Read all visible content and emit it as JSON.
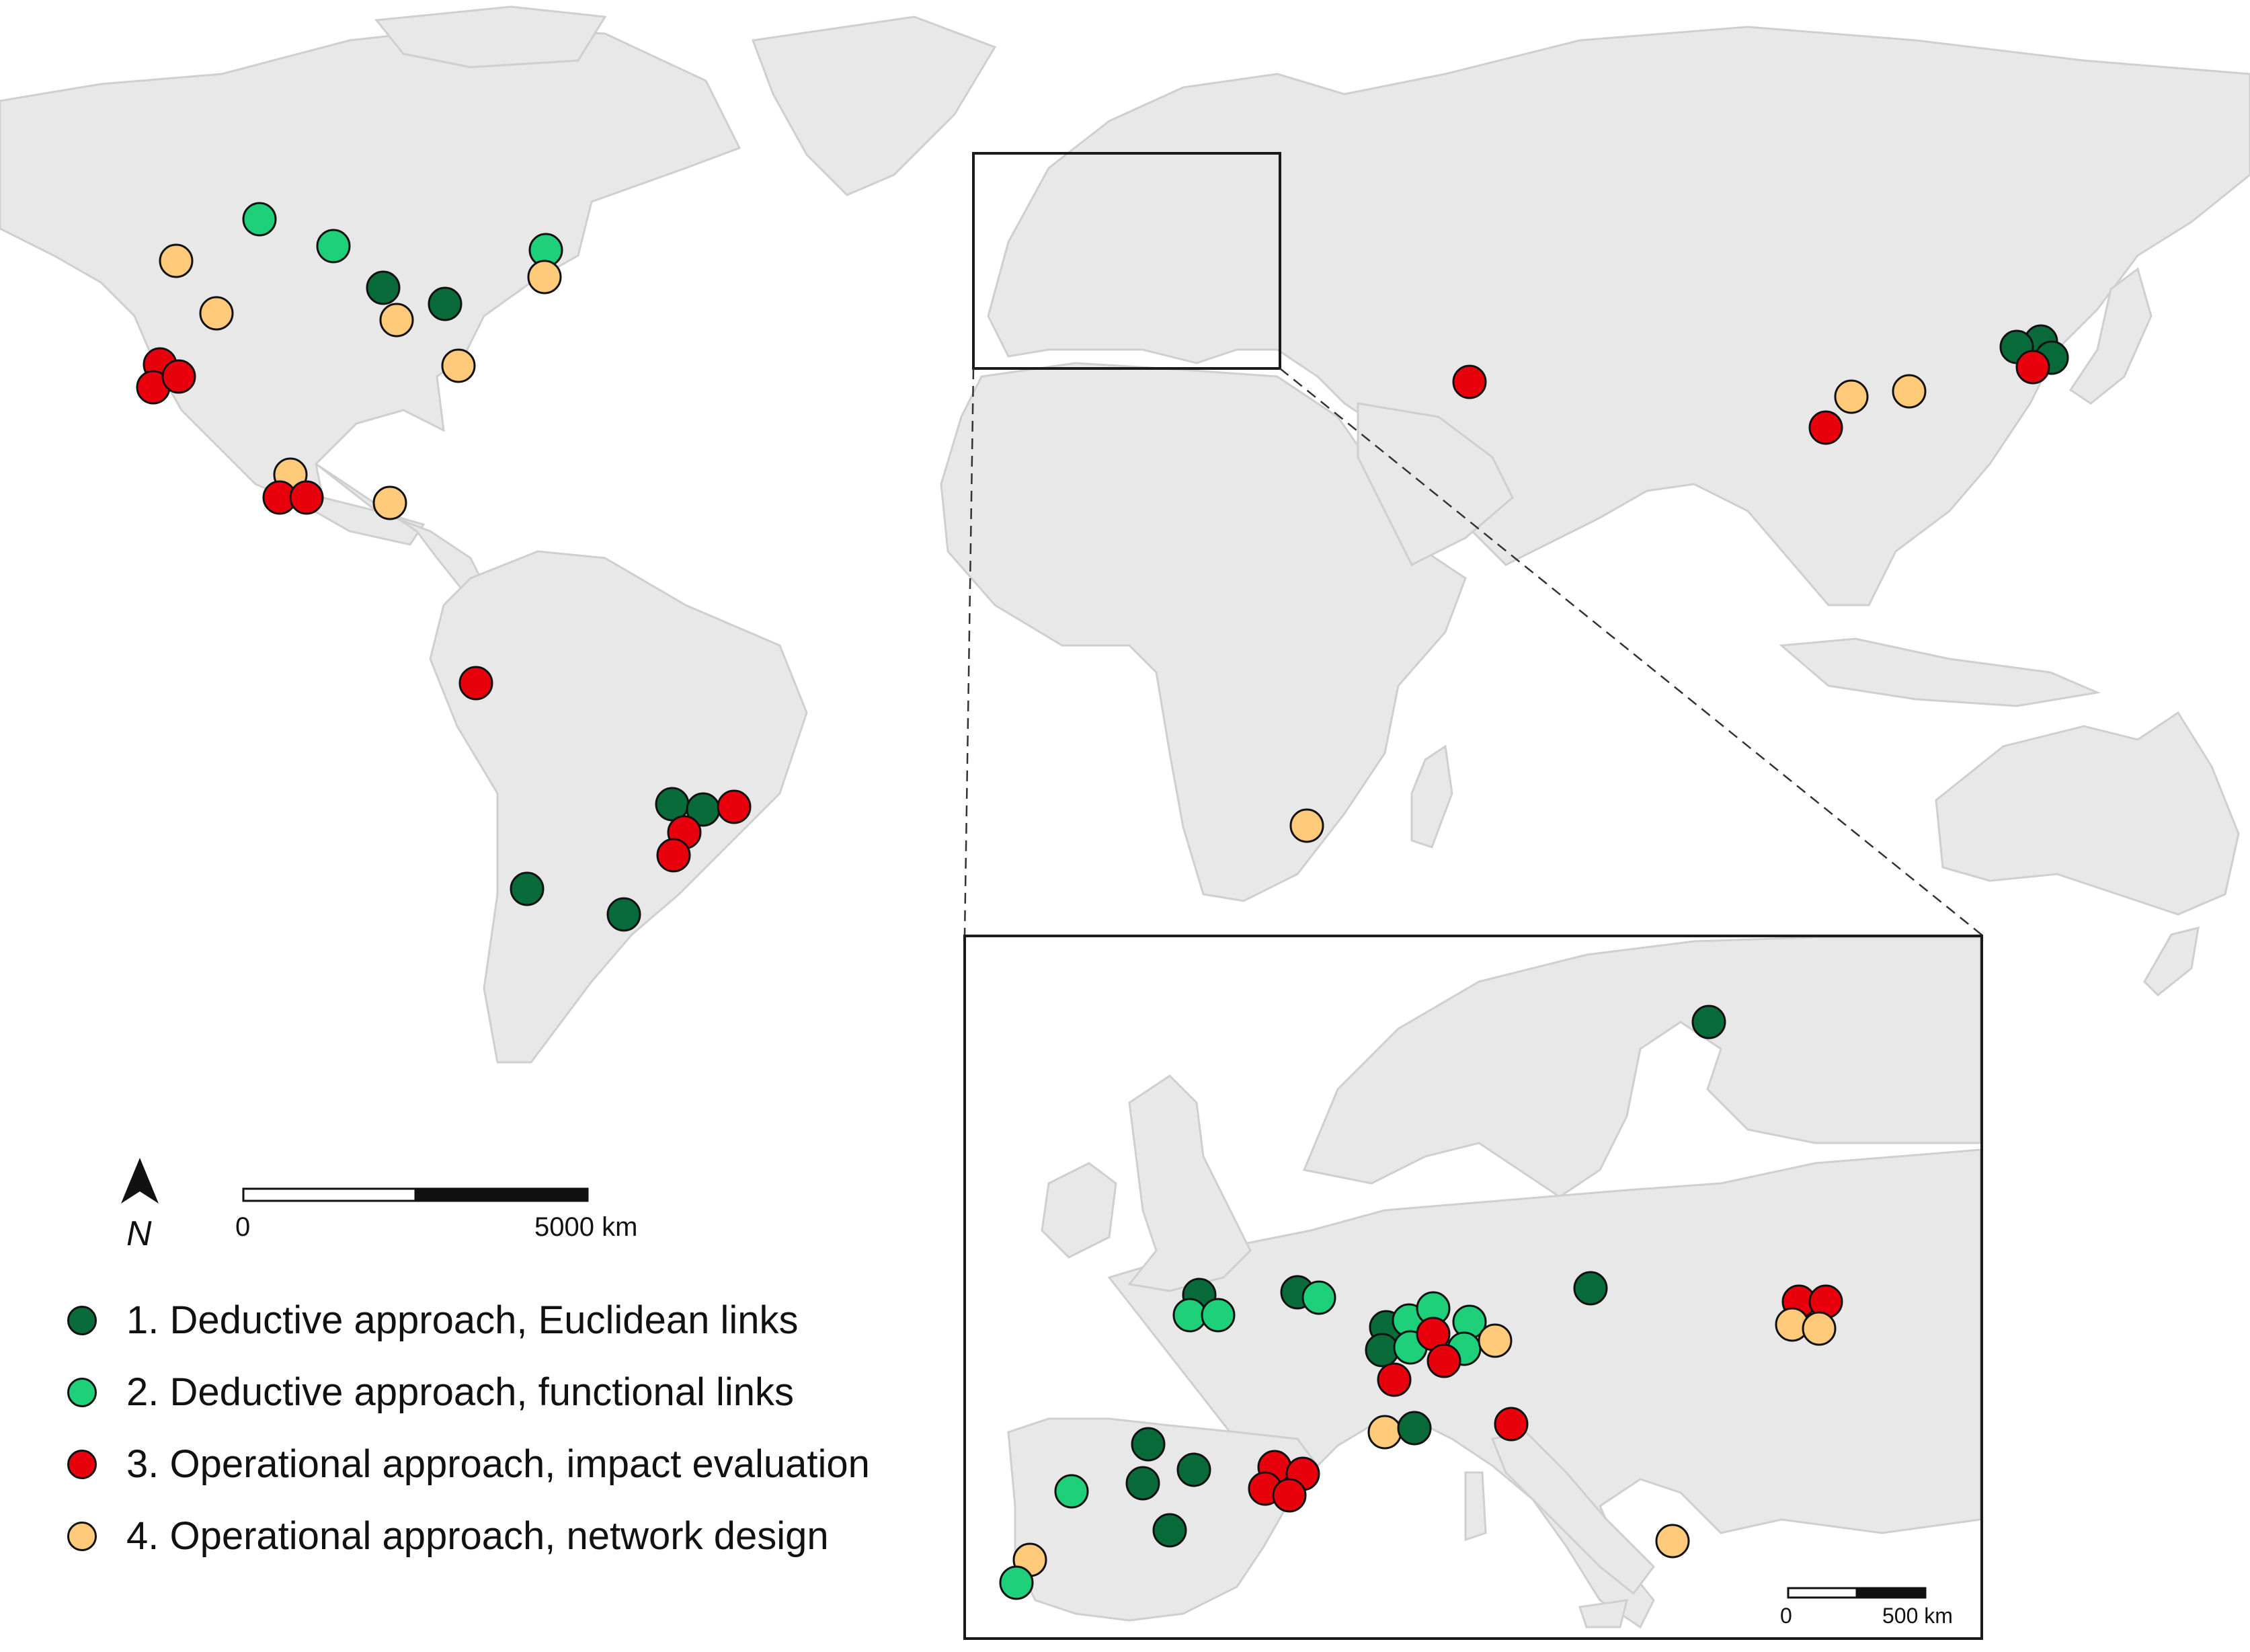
{
  "categories": [
    {
      "id": "c1",
      "label": "1. Deductive approach, Euclidean links",
      "color": "#0a6b3a"
    },
    {
      "id": "c2",
      "label": "2. Deductive approach, functional links",
      "color": "#1fd07a"
    },
    {
      "id": "c3",
      "label": "3. Operational approach, impact evaluation",
      "color": "#e8000d"
    },
    {
      "id": "c4",
      "label": "4. Operational approach, network design",
      "color": "#ffca7a"
    }
  ],
  "scale_bar": {
    "start_label": "0",
    "end_label": "5000 km"
  },
  "inset_scale_bar": {
    "start_label": "0",
    "end_label": "500 km"
  },
  "north_arrow": {
    "label": "N",
    "icon": "north-arrow-icon"
  },
  "map_colors": {
    "land": "#e8e8e8",
    "border": "#cfcfcf",
    "sea": "#ffffff"
  }
}
